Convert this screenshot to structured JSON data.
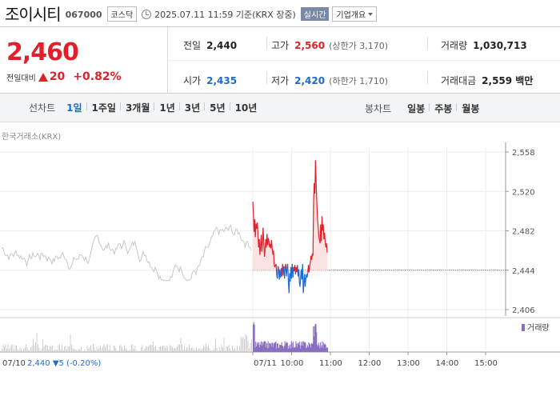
{
  "header": {
    "name": "조이시티",
    "code": "067000",
    "market_badge": "코스닥",
    "timestamp": "2025.07.11 11:59 기준(KRX 장중)",
    "realtime": "실시간",
    "company_info": "기업개요"
  },
  "summary": {
    "price": "2,460",
    "change_label": "전일대비",
    "change": "20",
    "change_pct": "+0.82%",
    "prev_close_label": "전일",
    "prev_close": "2,440",
    "high_label": "고가",
    "high": "2,560",
    "upper_limit": "(상한가 3,170)",
    "volume_label": "거래량",
    "volume": "1,030,713",
    "open_label": "시가",
    "open": "2,435",
    "low_label": "저가",
    "low": "2,420",
    "lower_limit": "(하한가 1,710)",
    "amount_label": "거래대금",
    "amount": "2,559 백만"
  },
  "toolbar": {
    "line_label": "선차트",
    "periods": [
      "1일",
      "1주일",
      "3개월",
      "1년",
      "3년",
      "5년",
      "10년"
    ],
    "active_period": "1일",
    "candle_label": "봉차트",
    "candles": [
      "일봉",
      "주봉",
      "월봉"
    ]
  },
  "source": "한국거래소(KRX)",
  "colors": {
    "up": "#e0202a",
    "down": "#1c6bd0",
    "prev": "#c8c8c8",
    "volume": "#8a6fc0"
  },
  "chart_data": {
    "type": "line",
    "y_ticks": [
      "2,558",
      "2,520",
      "2,482",
      "2,444",
      "2,406"
    ],
    "ylim": [
      2406,
      2558
    ],
    "baseline": 2444,
    "legend": "거래량",
    "x_ticks": [
      "10:00",
      "11:00",
      "12:00",
      "13:00",
      "14:00",
      "15:00"
    ],
    "prev_day_label": "07/10",
    "today_label": "07/11",
    "prev_day_summary": {
      "price": "2,440",
      "arrow": "▼",
      "change": "5",
      "pct": "(-0.20%)"
    },
    "today_series": [
      [
        "09:00",
        2510
      ],
      [
        "09:01",
        2497
      ],
      [
        "09:02",
        2481
      ],
      [
        "09:03",
        2493
      ],
      [
        "09:04",
        2476
      ],
      [
        "09:05",
        2489
      ],
      [
        "09:06",
        2484
      ],
      [
        "09:07",
        2490
      ],
      [
        "09:08",
        2478
      ],
      [
        "09:09",
        2466
      ],
      [
        "09:10",
        2474
      ],
      [
        "09:11",
        2459
      ],
      [
        "09:12",
        2467
      ],
      [
        "09:13",
        2478
      ],
      [
        "09:14",
        2462
      ],
      [
        "09:15",
        2470
      ],
      [
        "09:16",
        2485
      ],
      [
        "09:17",
        2471
      ],
      [
        "09:18",
        2457
      ],
      [
        "09:19",
        2464
      ],
      [
        "09:20",
        2474
      ],
      [
        "09:21",
        2466
      ],
      [
        "09:22",
        2479
      ],
      [
        "09:23",
        2468
      ],
      [
        "09:24",
        2475
      ],
      [
        "09:25",
        2472
      ],
      [
        "09:26",
        2466
      ],
      [
        "09:27",
        2469
      ],
      [
        "09:28",
        2465
      ],
      [
        "09:29",
        2473
      ],
      [
        "09:30",
        2465
      ],
      [
        "09:31",
        2459
      ],
      [
        "09:32",
        2463
      ],
      [
        "09:33",
        2449
      ],
      [
        "09:34",
        2447
      ],
      [
        "09:35",
        2449
      ],
      [
        "09:36",
        2450
      ],
      [
        "09:37",
        2439
      ],
      [
        "09:38",
        2436
      ],
      [
        "09:39",
        2448
      ],
      [
        "09:40",
        2445
      ],
      [
        "09:41",
        2435
      ],
      [
        "09:42",
        2445
      ],
      [
        "09:43",
        2437
      ],
      [
        "09:44",
        2446
      ],
      [
        "09:45",
        2438
      ],
      [
        "09:46",
        2450
      ],
      [
        "09:47",
        2439
      ],
      [
        "09:48",
        2448
      ],
      [
        "09:49",
        2436
      ],
      [
        "09:50",
        2447
      ],
      [
        "09:51",
        2450
      ],
      [
        "09:52",
        2438
      ],
      [
        "09:53",
        2446
      ],
      [
        "09:54",
        2450
      ],
      [
        "09:55",
        2432
      ],
      [
        "09:56",
        2422
      ],
      [
        "09:57",
        2441
      ],
      [
        "09:58",
        2433
      ],
      [
        "09:59",
        2447
      ],
      [
        "10:00",
        2436
      ],
      [
        "10:01",
        2450
      ],
      [
        "10:02",
        2437
      ],
      [
        "10:03",
        2447
      ],
      [
        "10:04",
        2443
      ],
      [
        "10:05",
        2449
      ],
      [
        "10:06",
        2440
      ],
      [
        "10:07",
        2447
      ],
      [
        "10:08",
        2442
      ],
      [
        "10:09",
        2449
      ],
      [
        "10:10",
        2438
      ],
      [
        "10:11",
        2445
      ],
      [
        "10:12",
        2433
      ],
      [
        "10:13",
        2428
      ],
      [
        "10:14",
        2436
      ],
      [
        "10:15",
        2445
      ],
      [
        "10:16",
        2435
      ],
      [
        "10:17",
        2450
      ],
      [
        "10:18",
        2422
      ],
      [
        "10:19",
        2432
      ],
      [
        "10:20",
        2440
      ],
      [
        "10:21",
        2428
      ],
      [
        "10:22",
        2436
      ],
      [
        "10:23",
        2440
      ],
      [
        "10:24",
        2437
      ],
      [
        "10:25",
        2441
      ],
      [
        "10:26",
        2449
      ],
      [
        "10:27",
        2442
      ],
      [
        "10:28",
        2448
      ],
      [
        "10:29",
        2452
      ],
      [
        "10:30",
        2458
      ],
      [
        "10:31",
        2454
      ],
      [
        "10:32",
        2460
      ],
      [
        "10:33",
        2458
      ],
      [
        "10:34",
        2510
      ],
      [
        "10:35",
        2528
      ],
      [
        "10:36",
        2518
      ],
      [
        "10:37",
        2550
      ],
      [
        "10:38",
        2528
      ],
      [
        "10:39",
        2510
      ],
      [
        "10:40",
        2494
      ],
      [
        "10:41",
        2487
      ],
      [
        "10:42",
        2478
      ],
      [
        "10:43",
        2473
      ],
      [
        "10:44",
        2470
      ],
      [
        "10:45",
        2488
      ],
      [
        "10:46",
        2472
      ],
      [
        "10:47",
        2496
      ],
      [
        "10:48",
        2482
      ],
      [
        "10:49",
        2488
      ],
      [
        "10:50",
        2474
      ],
      [
        "10:51",
        2480
      ],
      [
        "10:52",
        2472
      ],
      [
        "10:53",
        2466
      ],
      [
        "10:54",
        2470
      ],
      [
        "10:55",
        2461
      ]
    ]
  }
}
